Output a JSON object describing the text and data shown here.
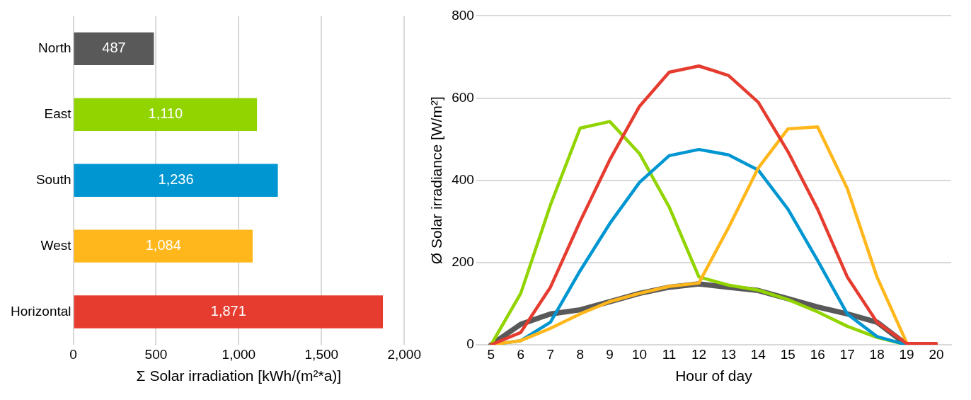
{
  "chart_data": [
    {
      "type": "bar",
      "orientation": "horizontal",
      "categories": [
        "North",
        "East",
        "South",
        "West",
        "Horizontal"
      ],
      "values": [
        487,
        1110,
        1236,
        1084,
        1871
      ],
      "colors": [
        "#595959",
        "#92d400",
        "#0096d1",
        "#ffb71b",
        "#e63c2f"
      ],
      "value_labels": [
        "487",
        "1,110",
        "1,236",
        "1,084",
        "1,871"
      ],
      "xlabel": "Σ Solar irradiation [kWh/(m²*a)]",
      "xlim": [
        0,
        2000
      ],
      "xticks": [
        0,
        500,
        {
          "value": 1000,
          "label": "1,000"
        },
        {
          "value": 1500,
          "label": "1,500"
        },
        {
          "value": 2000,
          "label": "2,000"
        }
      ],
      "grid": "x",
      "legend": false
    },
    {
      "type": "line",
      "categories": [
        "5",
        "6",
        "7",
        "8",
        "9",
        "10",
        "11",
        "12",
        "13",
        "14",
        "15",
        "16",
        "17",
        "18",
        "19",
        "20"
      ],
      "xlabel": "Hour of day",
      "ylabel": "Ø Solar irradiance [W/m²]",
      "ylim": [
        0,
        800
      ],
      "yticks": [
        0,
        200,
        400,
        600,
        800
      ],
      "grid": "y",
      "legend": false,
      "marker": "none",
      "line_style": "solid",
      "series": [
        {
          "color": "#595959",
          "values": [
            0,
            50,
            75,
            85,
            105,
            125,
            140,
            148,
            140,
            132,
            112,
            92,
            75,
            55,
            0,
            null
          ]
        },
        {
          "color": "#92d400",
          "values": [
            0,
            125,
            340,
            527,
            543,
            465,
            335,
            165,
            145,
            133,
            110,
            80,
            45,
            18,
            0,
            null
          ]
        },
        {
          "color": "#0096d1",
          "values": [
            0,
            10,
            55,
            180,
            295,
            395,
            460,
            475,
            462,
            425,
            330,
            205,
            75,
            20,
            0,
            null
          ]
        },
        {
          "color": "#ffb71b",
          "values": [
            0,
            10,
            40,
            75,
            105,
            125,
            142,
            150,
            285,
            430,
            525,
            530,
            380,
            165,
            5,
            null
          ]
        },
        {
          "color": "#e63c2f",
          "values": [
            0,
            30,
            140,
            300,
            450,
            580,
            663,
            678,
            655,
            590,
            470,
            330,
            165,
            55,
            3,
            3
          ]
        }
      ]
    }
  ]
}
